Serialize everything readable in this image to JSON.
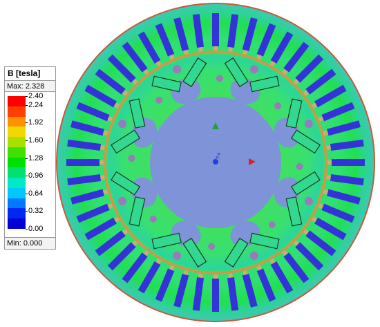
{
  "legend": {
    "title": "B [tesla]",
    "max_label": "Max: 2.328",
    "min_label": "Min: 0.000",
    "ticks": [
      "2.40",
      "2.24",
      "1.92",
      "1.60",
      "1.28",
      "0.96",
      "0.64",
      "0.32",
      "0.00"
    ],
    "tick_values": [
      2.4,
      2.24,
      1.92,
      1.6,
      1.28,
      0.96,
      0.64,
      0.32,
      0.0
    ],
    "colors": [
      "#ff0000",
      "#ff4000",
      "#ff9000",
      "#f0d800",
      "#a8e000",
      "#40e000",
      "#00e000",
      "#00e070",
      "#00e8c8",
      "#00c8ff",
      "#0078ff",
      "#0028f0",
      "#0000d8"
    ]
  },
  "model": {
    "stator_slots": 48,
    "rotor_poles": 8,
    "colors": {
      "background": "#ffffff",
      "stator_yoke": "#33d8a0",
      "outer_edge": "#c85a3a",
      "slot": "#3433d8",
      "air_gap_ring": "#c89a50",
      "rotor_core": "#35e060",
      "shaft": "#7e93d8",
      "magnet_outline": "#1a3a1a"
    }
  },
  "axes_triad": {
    "z_label": "Z",
    "x_color": "#e02020",
    "y_color": "#20a040",
    "z_color": "#2040e0"
  }
}
